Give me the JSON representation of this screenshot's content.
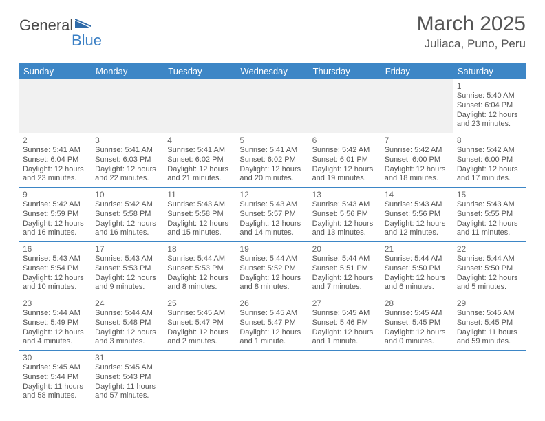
{
  "logo": {
    "text_general": "General",
    "text_blue": "Blue"
  },
  "title": {
    "month": "March 2025",
    "location": "Juliaca, Puno, Peru"
  },
  "style": {
    "header_bg": "#3d86c6",
    "header_fg": "#ffffff",
    "cell_border": "#3d86c6",
    "blank_bg": "#f1f1f1",
    "text_color": "#555555",
    "daynum_color": "#666666",
    "font_family": "Arial, Helvetica, sans-serif",
    "month_fontsize_pt": 22,
    "location_fontsize_pt": 13,
    "dayhead_fontsize_pt": 10,
    "body_fontsize_pt": 8
  },
  "weekdays": [
    "Sunday",
    "Monday",
    "Tuesday",
    "Wednesday",
    "Thursday",
    "Friday",
    "Saturday"
  ],
  "leading_blanks": 6,
  "days": [
    {
      "n": "1",
      "sunrise": "Sunrise: 5:40 AM",
      "sunset": "Sunset: 6:04 PM",
      "daylight1": "Daylight: 12 hours",
      "daylight2": "and 23 minutes."
    },
    {
      "n": "2",
      "sunrise": "Sunrise: 5:41 AM",
      "sunset": "Sunset: 6:04 PM",
      "daylight1": "Daylight: 12 hours",
      "daylight2": "and 23 minutes."
    },
    {
      "n": "3",
      "sunrise": "Sunrise: 5:41 AM",
      "sunset": "Sunset: 6:03 PM",
      "daylight1": "Daylight: 12 hours",
      "daylight2": "and 22 minutes."
    },
    {
      "n": "4",
      "sunrise": "Sunrise: 5:41 AM",
      "sunset": "Sunset: 6:02 PM",
      "daylight1": "Daylight: 12 hours",
      "daylight2": "and 21 minutes."
    },
    {
      "n": "5",
      "sunrise": "Sunrise: 5:41 AM",
      "sunset": "Sunset: 6:02 PM",
      "daylight1": "Daylight: 12 hours",
      "daylight2": "and 20 minutes."
    },
    {
      "n": "6",
      "sunrise": "Sunrise: 5:42 AM",
      "sunset": "Sunset: 6:01 PM",
      "daylight1": "Daylight: 12 hours",
      "daylight2": "and 19 minutes."
    },
    {
      "n": "7",
      "sunrise": "Sunrise: 5:42 AM",
      "sunset": "Sunset: 6:00 PM",
      "daylight1": "Daylight: 12 hours",
      "daylight2": "and 18 minutes."
    },
    {
      "n": "8",
      "sunrise": "Sunrise: 5:42 AM",
      "sunset": "Sunset: 6:00 PM",
      "daylight1": "Daylight: 12 hours",
      "daylight2": "and 17 minutes."
    },
    {
      "n": "9",
      "sunrise": "Sunrise: 5:42 AM",
      "sunset": "Sunset: 5:59 PM",
      "daylight1": "Daylight: 12 hours",
      "daylight2": "and 16 minutes."
    },
    {
      "n": "10",
      "sunrise": "Sunrise: 5:42 AM",
      "sunset": "Sunset: 5:58 PM",
      "daylight1": "Daylight: 12 hours",
      "daylight2": "and 16 minutes."
    },
    {
      "n": "11",
      "sunrise": "Sunrise: 5:43 AM",
      "sunset": "Sunset: 5:58 PM",
      "daylight1": "Daylight: 12 hours",
      "daylight2": "and 15 minutes."
    },
    {
      "n": "12",
      "sunrise": "Sunrise: 5:43 AM",
      "sunset": "Sunset: 5:57 PM",
      "daylight1": "Daylight: 12 hours",
      "daylight2": "and 14 minutes."
    },
    {
      "n": "13",
      "sunrise": "Sunrise: 5:43 AM",
      "sunset": "Sunset: 5:56 PM",
      "daylight1": "Daylight: 12 hours",
      "daylight2": "and 13 minutes."
    },
    {
      "n": "14",
      "sunrise": "Sunrise: 5:43 AM",
      "sunset": "Sunset: 5:56 PM",
      "daylight1": "Daylight: 12 hours",
      "daylight2": "and 12 minutes."
    },
    {
      "n": "15",
      "sunrise": "Sunrise: 5:43 AM",
      "sunset": "Sunset: 5:55 PM",
      "daylight1": "Daylight: 12 hours",
      "daylight2": "and 11 minutes."
    },
    {
      "n": "16",
      "sunrise": "Sunrise: 5:43 AM",
      "sunset": "Sunset: 5:54 PM",
      "daylight1": "Daylight: 12 hours",
      "daylight2": "and 10 minutes."
    },
    {
      "n": "17",
      "sunrise": "Sunrise: 5:43 AM",
      "sunset": "Sunset: 5:53 PM",
      "daylight1": "Daylight: 12 hours",
      "daylight2": "and 9 minutes."
    },
    {
      "n": "18",
      "sunrise": "Sunrise: 5:44 AM",
      "sunset": "Sunset: 5:53 PM",
      "daylight1": "Daylight: 12 hours",
      "daylight2": "and 8 minutes."
    },
    {
      "n": "19",
      "sunrise": "Sunrise: 5:44 AM",
      "sunset": "Sunset: 5:52 PM",
      "daylight1": "Daylight: 12 hours",
      "daylight2": "and 8 minutes."
    },
    {
      "n": "20",
      "sunrise": "Sunrise: 5:44 AM",
      "sunset": "Sunset: 5:51 PM",
      "daylight1": "Daylight: 12 hours",
      "daylight2": "and 7 minutes."
    },
    {
      "n": "21",
      "sunrise": "Sunrise: 5:44 AM",
      "sunset": "Sunset: 5:50 PM",
      "daylight1": "Daylight: 12 hours",
      "daylight2": "and 6 minutes."
    },
    {
      "n": "22",
      "sunrise": "Sunrise: 5:44 AM",
      "sunset": "Sunset: 5:50 PM",
      "daylight1": "Daylight: 12 hours",
      "daylight2": "and 5 minutes."
    },
    {
      "n": "23",
      "sunrise": "Sunrise: 5:44 AM",
      "sunset": "Sunset: 5:49 PM",
      "daylight1": "Daylight: 12 hours",
      "daylight2": "and 4 minutes."
    },
    {
      "n": "24",
      "sunrise": "Sunrise: 5:44 AM",
      "sunset": "Sunset: 5:48 PM",
      "daylight1": "Daylight: 12 hours",
      "daylight2": "and 3 minutes."
    },
    {
      "n": "25",
      "sunrise": "Sunrise: 5:45 AM",
      "sunset": "Sunset: 5:47 PM",
      "daylight1": "Daylight: 12 hours",
      "daylight2": "and 2 minutes."
    },
    {
      "n": "26",
      "sunrise": "Sunrise: 5:45 AM",
      "sunset": "Sunset: 5:47 PM",
      "daylight1": "Daylight: 12 hours",
      "daylight2": "and 1 minute."
    },
    {
      "n": "27",
      "sunrise": "Sunrise: 5:45 AM",
      "sunset": "Sunset: 5:46 PM",
      "daylight1": "Daylight: 12 hours",
      "daylight2": "and 1 minute."
    },
    {
      "n": "28",
      "sunrise": "Sunrise: 5:45 AM",
      "sunset": "Sunset: 5:45 PM",
      "daylight1": "Daylight: 12 hours",
      "daylight2": "and 0 minutes."
    },
    {
      "n": "29",
      "sunrise": "Sunrise: 5:45 AM",
      "sunset": "Sunset: 5:45 PM",
      "daylight1": "Daylight: 11 hours",
      "daylight2": "and 59 minutes."
    },
    {
      "n": "30",
      "sunrise": "Sunrise: 5:45 AM",
      "sunset": "Sunset: 5:44 PM",
      "daylight1": "Daylight: 11 hours",
      "daylight2": "and 58 minutes."
    },
    {
      "n": "31",
      "sunrise": "Sunrise: 5:45 AM",
      "sunset": "Sunset: 5:43 PM",
      "daylight1": "Daylight: 11 hours",
      "daylight2": "and 57 minutes."
    }
  ]
}
